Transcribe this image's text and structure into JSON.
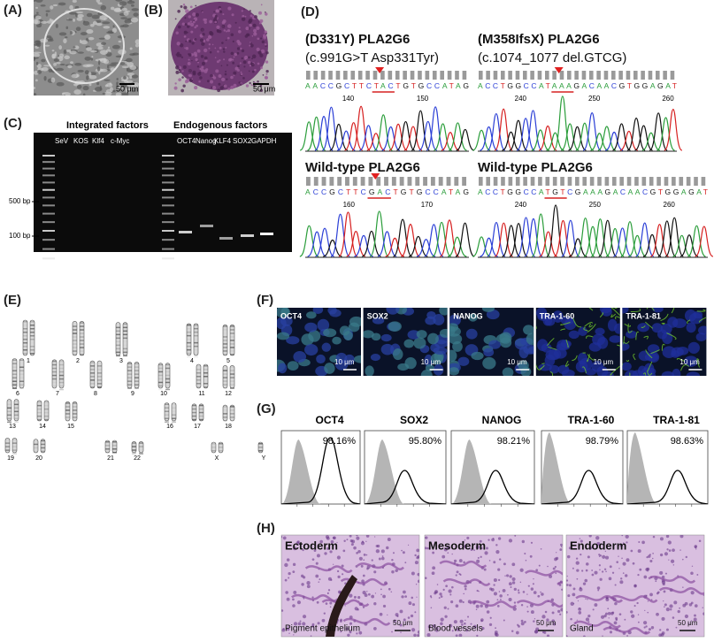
{
  "panel_labels": [
    "(A)",
    "(B)",
    "(C)",
    "(D)",
    "(E)",
    "(F)",
    "(G)",
    "(H)"
  ],
  "panel_a": {
    "scale_bar": "50 μm"
  },
  "panel_b": {
    "scale_bar": "50 μm"
  },
  "panel_c": {
    "integrated_header": "Integrated factors",
    "endogenous_header": "Endogenous factors",
    "integrated_lanes": [
      "SeV",
      "KOS",
      "Klf4",
      "c-Myc"
    ],
    "endogenous_lanes": [
      "OCT4",
      "Nanog",
      "KLF4",
      "SOX2",
      "GAPDH"
    ],
    "ladder_marks": [
      "500 bp",
      "100 bp"
    ]
  },
  "panel_d": {
    "traces": [
      {
        "title": "(D331Y)  PLA2G6",
        "subtitle": "(c.991G>T Asp331Tyr)",
        "sequence": "AACCGCTTCTACTGTGCCATAG",
        "positions": [
          "140",
          "150"
        ]
      },
      {
        "title": "(M358IfsX) PLA2G6",
        "subtitle": "(c.1074_1077 del.GTCG)",
        "sequence": "ACCTGGCCATAAAGACAACGTGGAGAT",
        "positions": [
          "240",
          "250",
          "260"
        ]
      },
      {
        "title": "Wild-type PLA2G6",
        "sequence": "ACCGCTTCGACTGTGCCATAG",
        "positions": [
          "160",
          "170"
        ]
      },
      {
        "title": "Wild-type PLA2G6",
        "sequence": "ACCTGGCCATGTCGAAAGACAACGTGGAGAT",
        "positions": [
          "240",
          "250",
          "260"
        ]
      }
    ]
  },
  "panel_e": {
    "chromosomes": [
      "1",
      "2",
      "3",
      "4",
      "5",
      "6",
      "7",
      "8",
      "9",
      "10",
      "11",
      "12",
      "13",
      "14",
      "15",
      "16",
      "17",
      "18",
      "19",
      "20",
      "21",
      "22",
      "X",
      "Y"
    ]
  },
  "panel_f": {
    "markers": [
      {
        "name": "OCT4",
        "scale_bar": "10 μm"
      },
      {
        "name": "SOX2",
        "scale_bar": "10 μm"
      },
      {
        "name": "NANOG",
        "scale_bar": "10 μm"
      },
      {
        "name": "TRA-1-60",
        "scale_bar": "10 μm"
      },
      {
        "name": "TRA-1-81",
        "scale_bar": "10 μm"
      }
    ]
  },
  "panel_g": {
    "markers": [
      {
        "name": "OCT4",
        "percent": "98.16%"
      },
      {
        "name": "SOX2",
        "percent": "95.80%"
      },
      {
        "name": "NANOG",
        "percent": "98.21%"
      },
      {
        "name": "TRA-1-60",
        "percent": "98.79%"
      },
      {
        "name": "TRA-1-81",
        "percent": "98.63%"
      }
    ]
  },
  "panel_h": {
    "layers": [
      {
        "name": "Ectoderm",
        "tissue": "Pigment epithelium",
        "scale_bar": "50 μm"
      },
      {
        "name": "Mesoderm",
        "tissue": "Blood vessels",
        "scale_bar": "50 μm"
      },
      {
        "name": "Endoderm",
        "tissue": "Gland",
        "scale_bar": "50 μm"
      }
    ]
  }
}
